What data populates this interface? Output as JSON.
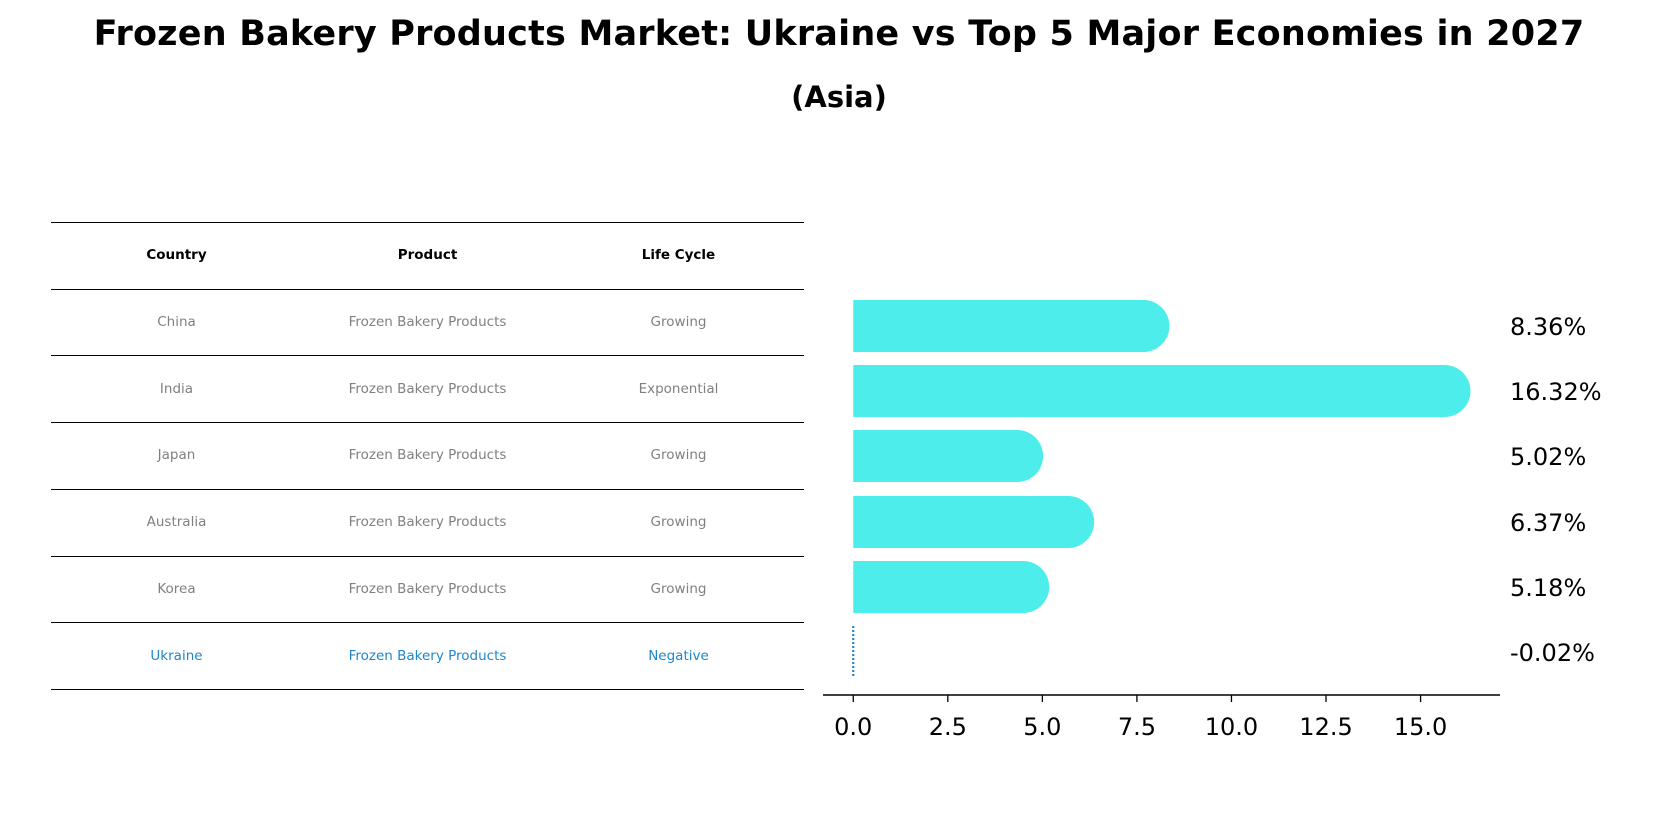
{
  "title": "Frozen Bakery Products Market: Ukraine vs Top 5 Major Economies in 2027",
  "subtitle": "(Asia)",
  "table": {
    "headers": [
      "Country",
      "Product",
      "Life Cycle"
    ],
    "rows": [
      {
        "country": "China",
        "product": "Frozen Bakery Products",
        "life_cycle": "Growing",
        "highlight": false
      },
      {
        "country": "India",
        "product": "Frozen Bakery Products",
        "life_cycle": "Exponential",
        "highlight": false
      },
      {
        "country": "Japan",
        "product": "Frozen Bakery Products",
        "life_cycle": "Growing",
        "highlight": false
      },
      {
        "country": "Australia",
        "product": "Frozen Bakery Products",
        "life_cycle": "Growing",
        "highlight": false
      },
      {
        "country": "Korea",
        "product": "Frozen Bakery Products",
        "life_cycle": "Growing",
        "highlight": false
      },
      {
        "country": "Ukraine",
        "product": "Frozen Bakery Products",
        "life_cycle": "Negative",
        "highlight": true
      }
    ]
  },
  "colors": {
    "bar": "#4dedeb",
    "highlight": "#1f86c9",
    "text_muted": "#808080"
  },
  "chart_data": {
    "type": "bar",
    "orientation": "horizontal",
    "title": "Frozen Bakery Products Market: Ukraine vs Top 5 Major Economies in 2027",
    "subtitle": "(Asia)",
    "categories": [
      "China",
      "India",
      "Japan",
      "Australia",
      "Korea",
      "Ukraine"
    ],
    "values": [
      8.36,
      16.32,
      5.02,
      6.37,
      5.18,
      -0.02
    ],
    "value_labels": [
      "8.36%",
      "16.32%",
      "5.02%",
      "6.37%",
      "5.18%",
      "-0.02%"
    ],
    "xlim": [
      -0.8,
      17.1
    ],
    "xticks": [
      0.0,
      2.5,
      5.0,
      7.5,
      10.0,
      12.5,
      15.0
    ],
    "xtick_labels": [
      "0.0",
      "2.5",
      "5.0",
      "7.5",
      "10.0",
      "12.5",
      "15.0"
    ],
    "xlabel": "",
    "ylabel": "",
    "grid": false
  }
}
